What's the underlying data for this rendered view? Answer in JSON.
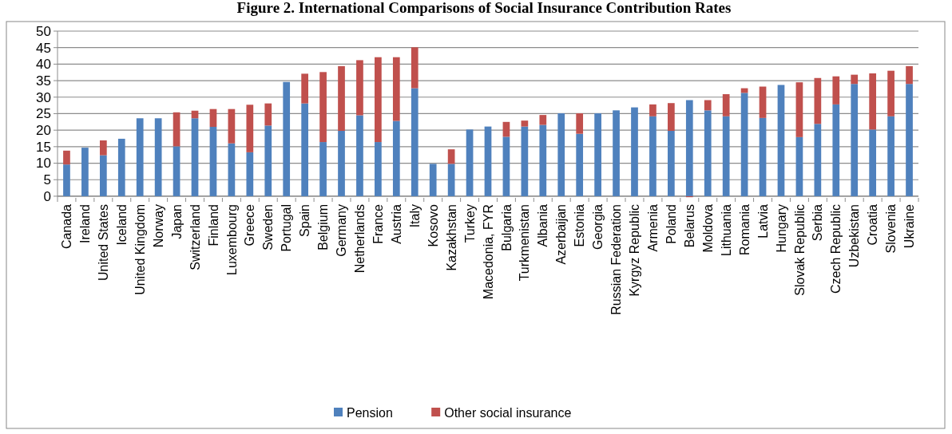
{
  "chart_data": {
    "type": "bar",
    "title": "Figure 2. International Comparisons of Social Insurance Contribution Rates",
    "stacked": true,
    "grid": "y",
    "legend": "bottom",
    "categories": [
      "Canada",
      "Ireland",
      "United States",
      "Iceland",
      "United Kingdom",
      "Norway",
      "Japan",
      "Switzerland",
      "Finland",
      "Luxembourg",
      "Greece",
      "Sweden",
      "Portugal",
      "Spain",
      "Belgium",
      "Germany",
      "Netherlands",
      "France",
      "Austria",
      "Italy",
      "Kosovo",
      "Kazakhstan",
      "Turkey",
      "Macedonia, FYR",
      "Bulgaria",
      "Turkmenistan",
      "Albania",
      "Azerbaijan",
      "Estonia",
      "Georgia",
      "Russian Federation",
      "Kyrgyz Republic",
      "Armenia",
      "Poland",
      "Belarus",
      "Moldova",
      "Lithuania",
      "Romania",
      "Latvia",
      "Hungary",
      "Slovak Republic",
      "Serbia",
      "Czech Republic",
      "Uzbekistan",
      "Croatia",
      "Slovenia",
      "Ukraine"
    ],
    "series": [
      {
        "name": "Pension",
        "color": "#4f81bd",
        "values": [
          9.6,
          14.7,
          12.4,
          17.4,
          23.6,
          23.6,
          15.1,
          23.6,
          21.0,
          16.0,
          13.3,
          21.4,
          34.6,
          28.1,
          16.4,
          19.8,
          24.5,
          16.4,
          22.8,
          32.7,
          9.8,
          9.8,
          20.2,
          21.1,
          18.0,
          21.1,
          21.6,
          25.1,
          18.9,
          25.1,
          26.0,
          26.9,
          24.2,
          19.8,
          29.1,
          26.0,
          24.2,
          31.3,
          23.7,
          33.7,
          17.9,
          21.9,
          27.8,
          34.0,
          20.2,
          24.2,
          34.0
        ]
      },
      {
        "name": "Other social insurance",
        "color": "#c0504d",
        "values": [
          4.2,
          0,
          4.5,
          0,
          0,
          0,
          10.3,
          2.3,
          5.4,
          10.4,
          14.4,
          6.7,
          0,
          9.0,
          21.2,
          19.6,
          16.7,
          25.7,
          19.3,
          12.4,
          0,
          4.4,
          0,
          0,
          4.5,
          1.8,
          3.0,
          0,
          6.2,
          0,
          0,
          0,
          3.6,
          8.4,
          -0.3,
          3.1,
          6.7,
          1.4,
          9.5,
          0,
          16.6,
          13.9,
          8.5,
          2.8,
          17.0,
          13.8,
          5.4
        ]
      }
    ],
    "ylim": [
      -0.5,
      50
    ],
    "yticks": [
      0,
      5,
      10,
      15,
      20,
      25,
      30,
      35,
      40,
      45,
      50
    ]
  }
}
